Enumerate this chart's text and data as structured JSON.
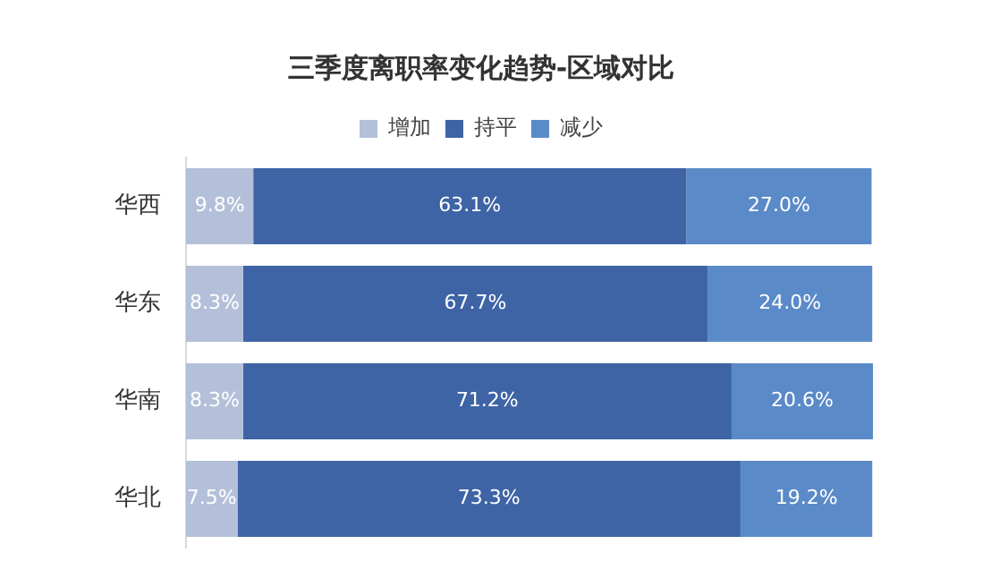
{
  "chart_data": {
    "type": "bar",
    "orientation": "horizontal",
    "stacked": true,
    "title": "三季度离职率变化趋势-区域对比",
    "categories": [
      "华西",
      "华东",
      "华南",
      "华北"
    ],
    "series": [
      {
        "name": "增加",
        "color": "#b4c0d9",
        "values": [
          9.8,
          8.3,
          8.3,
          7.5
        ],
        "value_labels": [
          "9.8%",
          "8.3%",
          "8.3%",
          "7.5%"
        ]
      },
      {
        "name": "持平",
        "color": "#3e64a6",
        "values": [
          63.1,
          67.7,
          71.2,
          73.3
        ],
        "value_labels": [
          "63.1%",
          "67.7%",
          "71.2%",
          "73.3%"
        ]
      },
      {
        "name": "减少",
        "color": "#5a8ac8",
        "values": [
          27.0,
          24.0,
          20.6,
          19.2
        ],
        "value_labels": [
          "27.0%",
          "24.0%",
          "20.6%",
          "19.2%"
        ]
      }
    ],
    "legend": "top",
    "tick_labels": "y"
  }
}
